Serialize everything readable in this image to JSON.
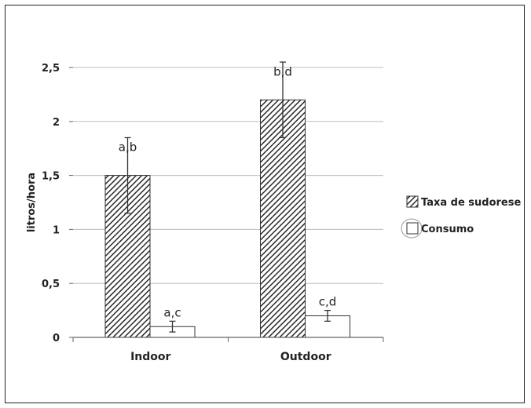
{
  "chart_data": {
    "type": "bar",
    "ylabel": "litros/hora",
    "categories": [
      "Indoor",
      "Outdoor"
    ],
    "ylim": [
      0,
      2.5
    ],
    "yticks": [
      "0",
      "0,5",
      "1",
      "1,5",
      "2",
      "2,5"
    ],
    "grid": true,
    "legend_position": "right",
    "series": [
      {
        "name": "Taxa de sudorese",
        "fill": "hatched",
        "color": "#333333",
        "values": [
          1.5,
          2.2
        ],
        "errors": [
          0.35,
          0.35
        ],
        "labels": [
          "a,b",
          "b,d"
        ]
      },
      {
        "name": "Consumo",
        "fill": "white",
        "color": "#333333",
        "values": [
          0.1,
          0.2
        ],
        "errors": [
          0.05,
          0.05
        ],
        "labels": [
          "a,c",
          "c,d"
        ]
      }
    ]
  }
}
